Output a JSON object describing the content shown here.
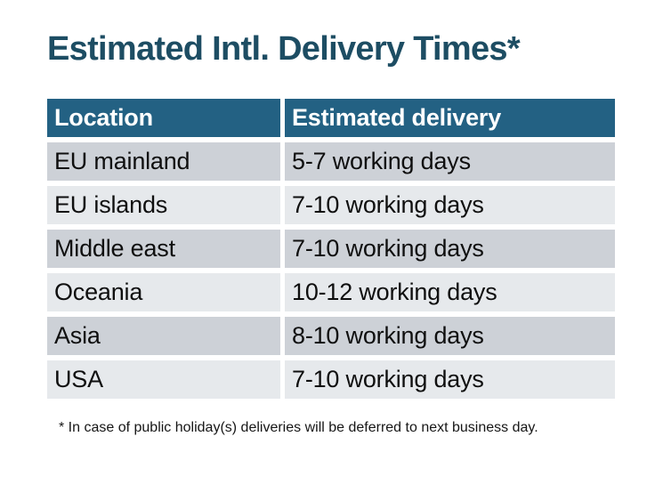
{
  "page": {
    "title": "Estimated Intl. Delivery Times*",
    "footnote": "* In case of public holiday(s) deliveries will be deferred to next business day."
  },
  "table": {
    "headers": {
      "location": "Location",
      "delivery": "Estimated delivery"
    },
    "rows": [
      {
        "location": "EU mainland",
        "delivery": "5-7 working days"
      },
      {
        "location": "EU islands",
        "delivery": "7-10 working days"
      },
      {
        "location": "Middle east",
        "delivery": "7-10 working days"
      },
      {
        "location": "Oceania",
        "delivery": "10-12 working days"
      },
      {
        "location": "Asia",
        "delivery": "8-10 working days"
      },
      {
        "location": "USA",
        "delivery": "7-10 working days"
      }
    ]
  },
  "colors": {
    "title_text": "#1d4d63",
    "header_background": "#236183",
    "header_text": "#ffffff",
    "row_odd_background": "#cdd1d7",
    "row_even_background": "#e6e9ec",
    "body_text": "#0f0f0f",
    "page_background": "#ffffff"
  },
  "chart_data": {
    "type": "table",
    "title": "Estimated Intl. Delivery Times*",
    "columns": [
      "Location",
      "Estimated delivery"
    ],
    "rows": [
      [
        "EU mainland",
        "5-7 working days"
      ],
      [
        "EU islands",
        "7-10 working days"
      ],
      [
        "Middle east",
        "7-10 working days"
      ],
      [
        "Oceania",
        "10-12 working days"
      ],
      [
        "Asia",
        "8-10 working days"
      ],
      [
        "USA",
        "7-10 working days"
      ]
    ],
    "footnote": "* In case of public holiday(s) deliveries will be deferred to next business day.",
    "layout_hints": {
      "header_style": "solid teal band with white bold text",
      "row_striping": "odd rows darker gray, even rows lighter gray, white gaps between cells"
    }
  }
}
